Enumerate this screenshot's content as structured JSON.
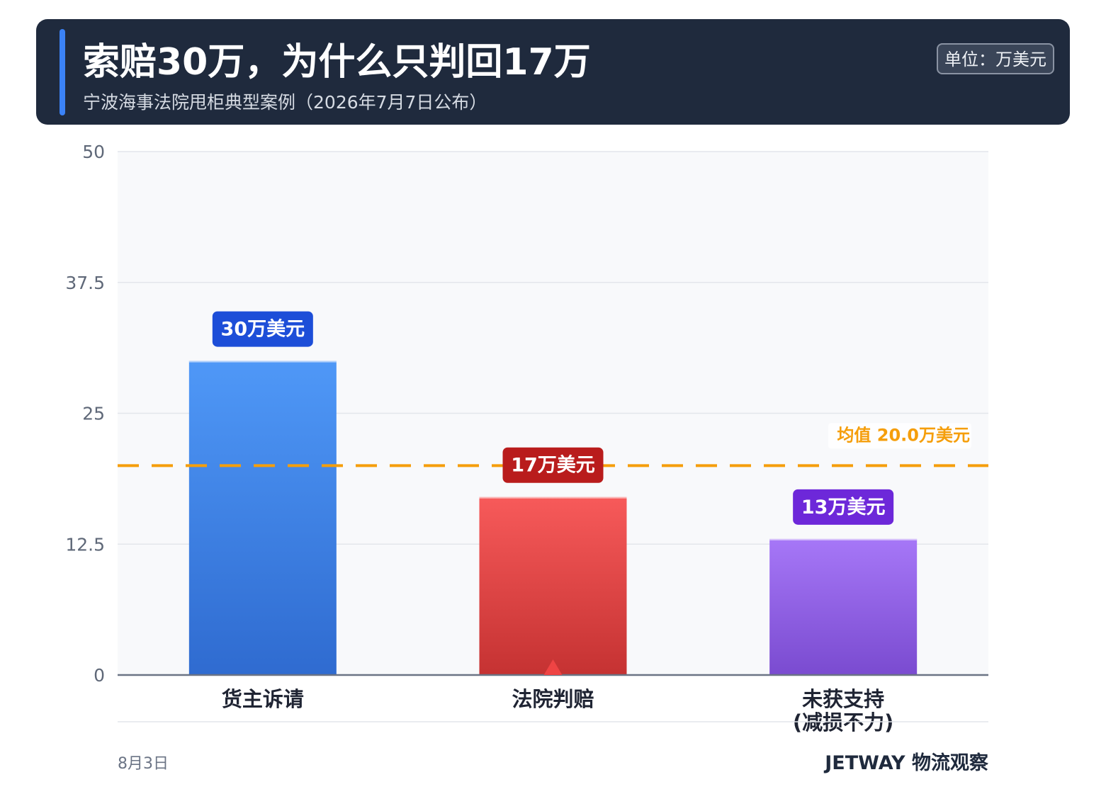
{
  "header": {
    "title": "索赔30万，为什么只判回17万",
    "subtitle": "宁波海事法院甩柜典型案例（2026年7月7日公布）",
    "unit": "单位：万美元",
    "accent_color": "#3b82f6"
  },
  "chart_data": {
    "type": "bar",
    "categories": [
      "货主诉请",
      "法院判赔",
      [
        "未获支持",
        "(减损不力)"
      ]
    ],
    "values": [
      30,
      17,
      13
    ],
    "data_labels": [
      "30万美元",
      "17万美元",
      "13万美元"
    ],
    "bar_colors": [
      {
        "top": "#4f98f7",
        "bottom": "#2f6bd0",
        "label_bg": "#1d4ed8"
      },
      {
        "top": "#f75a5a",
        "bottom": "#c53232",
        "label_bg": "#b91c1c"
      },
      {
        "top": "#a677f7",
        "bottom": "#7a4bd0",
        "label_bg": "#6d28d9"
      }
    ],
    "ylim": [
      0,
      50
    ],
    "yticks": [
      0,
      12.5,
      25,
      37.5,
      50
    ],
    "ytick_labels": [
      "0",
      "12.5",
      "25",
      "37.5",
      "50"
    ],
    "grid": true,
    "reference_line": {
      "value": 20,
      "label": "均值 20.0万美元",
      "color": "#f59e0b"
    },
    "highlight_marker": {
      "category_index": 1,
      "color": "#ef4444"
    },
    "xlabel": "",
    "ylabel": ""
  },
  "footer": {
    "date": "8月3日",
    "brand": "JETWAY 物流观察"
  }
}
